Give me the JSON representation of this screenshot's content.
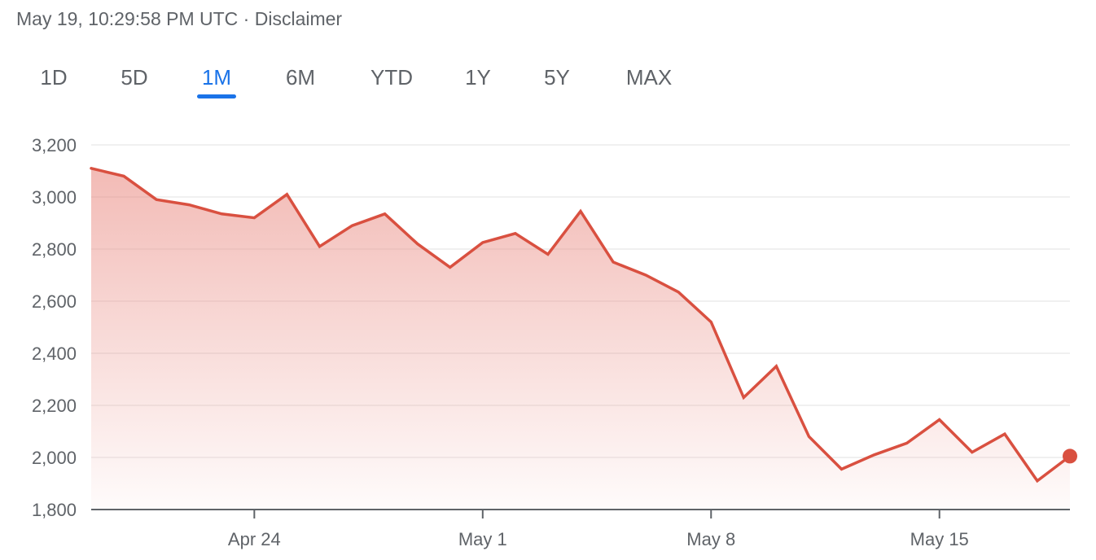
{
  "header": {
    "timestamp": "May 19, 10:29:58 PM UTC",
    "separator": " · ",
    "disclaimer": "Disclaimer"
  },
  "range_tabs": {
    "items": [
      "1D",
      "5D",
      "1M",
      "6M",
      "YTD",
      "1Y",
      "5Y",
      "MAX"
    ],
    "active": "1M"
  },
  "colors": {
    "line": "#d95040",
    "fill": "#e8837a",
    "active_tab": "#1a73e8",
    "grid": "#ececec",
    "axis": "#5f6368"
  },
  "chart_data": {
    "type": "area",
    "ylim": [
      1800,
      3200
    ],
    "yticks": [
      1800,
      2000,
      2200,
      2400,
      2600,
      2800,
      3000,
      3200
    ],
    "ytick_labels": [
      "1,800",
      "2,000",
      "2,200",
      "2,400",
      "2,600",
      "2,800",
      "3,000",
      "3,200"
    ],
    "xtick_labels": [
      "Apr 24",
      "May 1",
      "May 8",
      "May 15"
    ],
    "xtick_index": [
      5,
      12,
      19,
      26
    ],
    "grid": true,
    "series": [
      {
        "values": [
          3110,
          3080,
          2990,
          2970,
          2935,
          2920,
          3010,
          2810,
          2890,
          2935,
          2820,
          2730,
          2825,
          2860,
          2780,
          2945,
          2750,
          2700,
          2635,
          2520,
          2230,
          2350,
          2080,
          1955,
          2010,
          2055,
          2145,
          2020,
          2090,
          1910,
          2005
        ]
      }
    ]
  }
}
